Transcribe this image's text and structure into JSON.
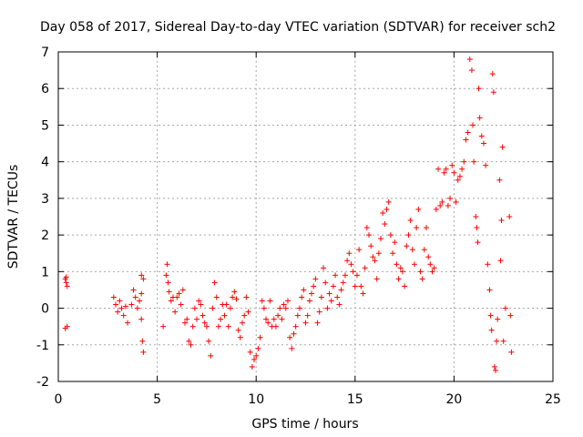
{
  "colors": {
    "series": "#ff0000",
    "grid": "#a8a8a8",
    "axis": "#000000"
  },
  "chart_data": {
    "type": "scatter",
    "title": "Day 058 of 2017, Sidereal Day-to-day VTEC variation (SDTVAR) for receiver sch2",
    "xlabel": "GPS time / hours",
    "ylabel": "SDTVAR / TECUs",
    "xlim": [
      0,
      25
    ],
    "ylim": [
      -2,
      7
    ],
    "xticks": [
      0,
      5,
      10,
      15,
      20,
      25
    ],
    "yticks": [
      -2,
      -1,
      0,
      1,
      2,
      3,
      4,
      5,
      6,
      7
    ],
    "xtick_labels": [
      "0",
      "5",
      "10",
      "15",
      "20",
      "25"
    ],
    "ytick_labels": [
      "-2",
      "-1",
      "0",
      "1",
      "2",
      "3",
      "4",
      "5",
      "6",
      "7"
    ],
    "grid": true,
    "marker": "+",
    "series": [
      {
        "name": "sch2",
        "points": [
          [
            0.35,
            0.8
          ],
          [
            0.4,
            0.7
          ],
          [
            0.45,
            0.6
          ],
          [
            0.4,
            0.85
          ],
          [
            0.45,
            -0.5
          ],
          [
            0.35,
            -0.55
          ],
          [
            2.8,
            0.3
          ],
          [
            2.9,
            0.1
          ],
          [
            3.0,
            -0.1
          ],
          [
            3.1,
            0.2
          ],
          [
            3.2,
            0.0
          ],
          [
            3.3,
            -0.2
          ],
          [
            3.4,
            0.05
          ],
          [
            3.5,
            -0.4
          ],
          [
            3.7,
            0.1
          ],
          [
            3.8,
            0.5
          ],
          [
            3.9,
            0.3
          ],
          [
            4.0,
            0.0
          ],
          [
            4.1,
            0.2
          ],
          [
            4.2,
            0.4
          ],
          [
            4.2,
            0.9
          ],
          [
            4.25,
            -0.9
          ],
          [
            4.3,
            -1.2
          ],
          [
            4.2,
            -0.3
          ],
          [
            4.3,
            0.8
          ],
          [
            5.3,
            -0.5
          ],
          [
            5.45,
            0.9
          ],
          [
            5.5,
            1.2
          ],
          [
            5.55,
            0.7
          ],
          [
            5.6,
            0.45
          ],
          [
            5.7,
            0.2
          ],
          [
            5.8,
            0.3
          ],
          [
            5.9,
            -0.1
          ],
          [
            6.0,
            0.3
          ],
          [
            6.1,
            0.4
          ],
          [
            6.2,
            0.1
          ],
          [
            6.3,
            0.5
          ],
          [
            6.4,
            -0.4
          ],
          [
            6.5,
            -0.3
          ],
          [
            6.6,
            -0.9
          ],
          [
            6.7,
            -1.0
          ],
          [
            6.8,
            -0.5
          ],
          [
            6.9,
            0.0
          ],
          [
            7.0,
            -0.3
          ],
          [
            7.1,
            0.2
          ],
          [
            7.2,
            0.1
          ],
          [
            7.3,
            -0.2
          ],
          [
            7.4,
            -0.4
          ],
          [
            7.5,
            -0.5
          ],
          [
            7.6,
            -0.9
          ],
          [
            7.7,
            -1.3
          ],
          [
            7.8,
            0.0
          ],
          [
            7.9,
            0.7
          ],
          [
            8.0,
            0.3
          ],
          [
            8.1,
            -0.5
          ],
          [
            8.2,
            -0.3
          ],
          [
            8.3,
            0.1
          ],
          [
            8.4,
            -0.2
          ],
          [
            8.5,
            0.1
          ],
          [
            8.6,
            -0.5
          ],
          [
            8.7,
            0.0
          ],
          [
            8.8,
            0.3
          ],
          [
            8.9,
            0.45
          ],
          [
            9.0,
            0.25
          ],
          [
            9.1,
            -0.6
          ],
          [
            9.2,
            -0.8
          ],
          [
            9.3,
            -0.4
          ],
          [
            9.4,
            -0.2
          ],
          [
            9.5,
            0.3
          ],
          [
            9.6,
            -0.1
          ],
          [
            9.7,
            -1.2
          ],
          [
            9.8,
            -1.6
          ],
          [
            9.9,
            -1.4
          ],
          [
            10.0,
            -1.3
          ],
          [
            10.1,
            -1.1
          ],
          [
            10.2,
            -0.8
          ],
          [
            10.3,
            0.2
          ],
          [
            10.4,
            0.0
          ],
          [
            10.5,
            -0.3
          ],
          [
            10.6,
            -0.4
          ],
          [
            10.7,
            0.2
          ],
          [
            10.8,
            -0.5
          ],
          [
            10.9,
            -0.3
          ],
          [
            11.0,
            -0.5
          ],
          [
            11.1,
            -0.2
          ],
          [
            11.2,
            0.0
          ],
          [
            11.3,
            -0.3
          ],
          [
            11.4,
            0.1
          ],
          [
            11.5,
            0.0
          ],
          [
            11.6,
            0.2
          ],
          [
            11.7,
            -0.8
          ],
          [
            11.8,
            -1.1
          ],
          [
            11.9,
            -0.7
          ],
          [
            12.0,
            -0.5
          ],
          [
            12.1,
            -0.2
          ],
          [
            12.2,
            0.0
          ],
          [
            12.3,
            0.3
          ],
          [
            12.4,
            0.5
          ],
          [
            12.5,
            -0.4
          ],
          [
            12.6,
            -0.2
          ],
          [
            12.7,
            0.2
          ],
          [
            12.8,
            0.4
          ],
          [
            12.9,
            0.6
          ],
          [
            13.0,
            0.8
          ],
          [
            13.1,
            -0.4
          ],
          [
            13.2,
            -0.1
          ],
          [
            13.3,
            0.3
          ],
          [
            13.4,
            1.1
          ],
          [
            13.5,
            0.7
          ],
          [
            13.6,
            0.0
          ],
          [
            13.7,
            0.4
          ],
          [
            13.8,
            0.2
          ],
          [
            13.9,
            0.6
          ],
          [
            14.0,
            0.9
          ],
          [
            14.1,
            0.3
          ],
          [
            14.2,
            0.1
          ],
          [
            14.3,
            0.5
          ],
          [
            14.4,
            0.7
          ],
          [
            14.5,
            0.9
          ],
          [
            14.6,
            1.3
          ],
          [
            14.7,
            1.5
          ],
          [
            14.8,
            1.2
          ],
          [
            14.9,
            1.0
          ],
          [
            15.0,
            0.6
          ],
          [
            15.1,
            0.9
          ],
          [
            15.2,
            1.6
          ],
          [
            15.3,
            0.6
          ],
          [
            15.4,
            0.4
          ],
          [
            15.5,
            1.1
          ],
          [
            15.6,
            2.2
          ],
          [
            15.7,
            2.0
          ],
          [
            15.8,
            1.7
          ],
          [
            15.9,
            1.4
          ],
          [
            16.0,
            1.3
          ],
          [
            16.1,
            0.8
          ],
          [
            16.2,
            1.5
          ],
          [
            16.3,
            1.9
          ],
          [
            16.4,
            2.6
          ],
          [
            16.5,
            2.3
          ],
          [
            16.6,
            2.7
          ],
          [
            16.7,
            2.9
          ],
          [
            16.8,
            2.0
          ],
          [
            16.9,
            1.5
          ],
          [
            17.0,
            1.8
          ],
          [
            17.1,
            1.2
          ],
          [
            17.2,
            0.8
          ],
          [
            17.3,
            1.1
          ],
          [
            17.4,
            1.0
          ],
          [
            17.5,
            0.6
          ],
          [
            17.6,
            1.7
          ],
          [
            17.7,
            2.0
          ],
          [
            17.8,
            2.4
          ],
          [
            17.9,
            1.6
          ],
          [
            18.0,
            1.2
          ],
          [
            18.1,
            2.2
          ],
          [
            18.2,
            2.7
          ],
          [
            18.3,
            1.0
          ],
          [
            18.4,
            0.8
          ],
          [
            18.5,
            1.6
          ],
          [
            18.6,
            2.2
          ],
          [
            18.7,
            1.4
          ],
          [
            18.8,
            1.2
          ],
          [
            18.9,
            1.0
          ],
          [
            19.0,
            1.1
          ],
          [
            19.1,
            2.7
          ],
          [
            19.2,
            3.8
          ],
          [
            19.3,
            2.8
          ],
          [
            19.4,
            2.9
          ],
          [
            19.5,
            3.7
          ],
          [
            19.6,
            3.8
          ],
          [
            19.7,
            2.8
          ],
          [
            19.8,
            3.0
          ],
          [
            19.9,
            3.9
          ],
          [
            20.0,
            3.7
          ],
          [
            20.1,
            2.9
          ],
          [
            20.2,
            3.5
          ],
          [
            20.3,
            3.6
          ],
          [
            20.4,
            3.8
          ],
          [
            20.5,
            4.0
          ],
          [
            20.6,
            4.6
          ],
          [
            20.7,
            4.8
          ],
          [
            20.8,
            6.8
          ],
          [
            20.9,
            6.5
          ],
          [
            20.95,
            5.0
          ],
          [
            21.0,
            4.0
          ],
          [
            21.1,
            2.5
          ],
          [
            21.15,
            2.2
          ],
          [
            21.2,
            1.8
          ],
          [
            21.25,
            6.0
          ],
          [
            21.3,
            5.2
          ],
          [
            21.4,
            4.7
          ],
          [
            21.5,
            4.5
          ],
          [
            21.6,
            3.9
          ],
          [
            21.7,
            1.2
          ],
          [
            21.8,
            0.5
          ],
          [
            21.85,
            -0.2
          ],
          [
            21.9,
            -0.6
          ],
          [
            21.95,
            6.4
          ],
          [
            22.0,
            5.9
          ],
          [
            22.05,
            -1.6
          ],
          [
            22.1,
            -1.7
          ],
          [
            22.15,
            -0.9
          ],
          [
            22.2,
            -0.3
          ],
          [
            22.3,
            3.5
          ],
          [
            22.35,
            1.3
          ],
          [
            22.4,
            2.4
          ],
          [
            22.45,
            4.4
          ],
          [
            22.5,
            -0.9
          ],
          [
            22.6,
            0.0
          ],
          [
            22.8,
            2.5
          ],
          [
            22.85,
            -0.2
          ],
          [
            22.9,
            -1.2
          ]
        ]
      }
    ]
  }
}
